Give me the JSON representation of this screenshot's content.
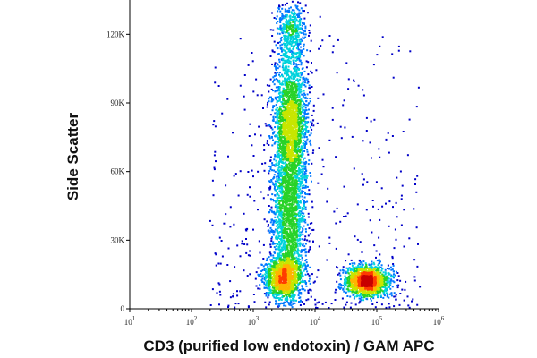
{
  "chart_data": {
    "type": "scatter",
    "title": "",
    "xlabel": "CD3 (purified low endotoxin) / GAM APC",
    "ylabel": "Side Scatter",
    "x_scale": "log",
    "xlim": [
      10,
      1000000
    ],
    "ylim": [
      0,
      135000
    ],
    "x_ticks": [
      {
        "value": 10,
        "base": "10",
        "exp": "1"
      },
      {
        "value": 100,
        "base": "10",
        "exp": "2"
      },
      {
        "value": 1000,
        "base": "10",
        "exp": "3"
      },
      {
        "value": 10000,
        "base": "10",
        "exp": "4"
      },
      {
        "value": 100000,
        "base": "10",
        "exp": "5"
      },
      {
        "value": 1000000,
        "base": "10",
        "exp": "6"
      }
    ],
    "y_ticks": [
      {
        "value": 0,
        "label": "0"
      },
      {
        "value": 30000,
        "label": "30K"
      },
      {
        "value": 60000,
        "label": "60K"
      },
      {
        "value": 90000,
        "label": "90K"
      },
      {
        "value": 120000,
        "label": "120K"
      }
    ],
    "grid": false,
    "legend": "none",
    "density_coloring": "pseudocolor (blue → cyan → green → yellow → red)",
    "colors": [
      "#0000c8",
      "#0078ff",
      "#00d2dc",
      "#28d228",
      "#c8e600",
      "#ffb400",
      "#ff3c00",
      "#c80000"
    ],
    "populations": [
      {
        "cd3_center": 4000,
        "cd3_spread_decades": 0.14,
        "ssc_center": 80000,
        "ssc_spread": 17000,
        "events": 2400
      },
      {
        "cd3_center": 3800,
        "cd3_spread_decades": 0.14,
        "ssc_center": 36000,
        "ssc_spread": 18000,
        "events": 1700
      },
      {
        "cd3_center": 3000,
        "cd3_spread_decades": 0.15,
        "ssc_center": 14000,
        "ssc_spread": 4500,
        "events": 1100
      },
      {
        "cd3_center": 70000,
        "cd3_spread_decades": 0.17,
        "ssc_center": 12000,
        "ssc_spread": 3200,
        "events": 1600
      },
      {
        "cd3_center": 4200,
        "cd3_spread_decades": 0.12,
        "ssc_center": 122000,
        "ssc_spread": 7000,
        "events": 400
      }
    ]
  }
}
